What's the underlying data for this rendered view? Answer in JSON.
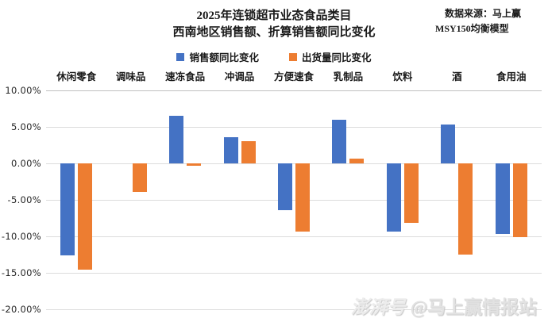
{
  "title": {
    "line1": "2025年连锁超市业态食品类目",
    "line2": "西南地区销售额、折算销售额同比变化"
  },
  "source": {
    "line1": "数据来源：马上赢",
    "line2": "MSY150均衡模型"
  },
  "legend": {
    "items": [
      {
        "label": "销售额同比变化",
        "color": "#4472C4"
      },
      {
        "label": "出货量同比变化",
        "color": "#ED7D31"
      }
    ]
  },
  "watermark": {
    "logo": "澎湃号",
    "text": "@马上赢情报站"
  },
  "colors": {
    "series_blue": "#4472C4",
    "series_orange": "#ED7D31",
    "gridline": "#dcdcdc",
    "background": "#ffffff"
  },
  "chart_data": {
    "type": "bar",
    "title": "2025年连锁超市业态食品类目 西南地区销售额、折算销售额同比变化",
    "categories": [
      "休闲零食",
      "调味品",
      "速冻食品",
      "冲调品",
      "方便速食",
      "乳制品",
      "饮料",
      "酒",
      "食用油"
    ],
    "series": [
      {
        "name": "销售额同比变化",
        "color": "#4472C4",
        "values": [
          -12.6,
          0.0,
          6.5,
          3.6,
          -6.4,
          6.0,
          -9.4,
          5.3,
          -9.7
        ]
      },
      {
        "name": "出货量同比变化",
        "color": "#ED7D31",
        "values": [
          -14.6,
          -3.9,
          -0.3,
          3.0,
          -9.3,
          0.7,
          -8.2,
          -12.5,
          -10.1
        ]
      }
    ],
    "xlabel": "",
    "ylabel": "",
    "ylim": [
      -20,
      10
    ],
    "ytick_step": 5,
    "yticks": [
      "10.00%",
      "5.00%",
      "0.00%",
      "-5.00%",
      "-10.00%",
      "-15.00%",
      "-20.00%"
    ],
    "grid": true,
    "legend_position": "top",
    "value_format": "percent"
  }
}
